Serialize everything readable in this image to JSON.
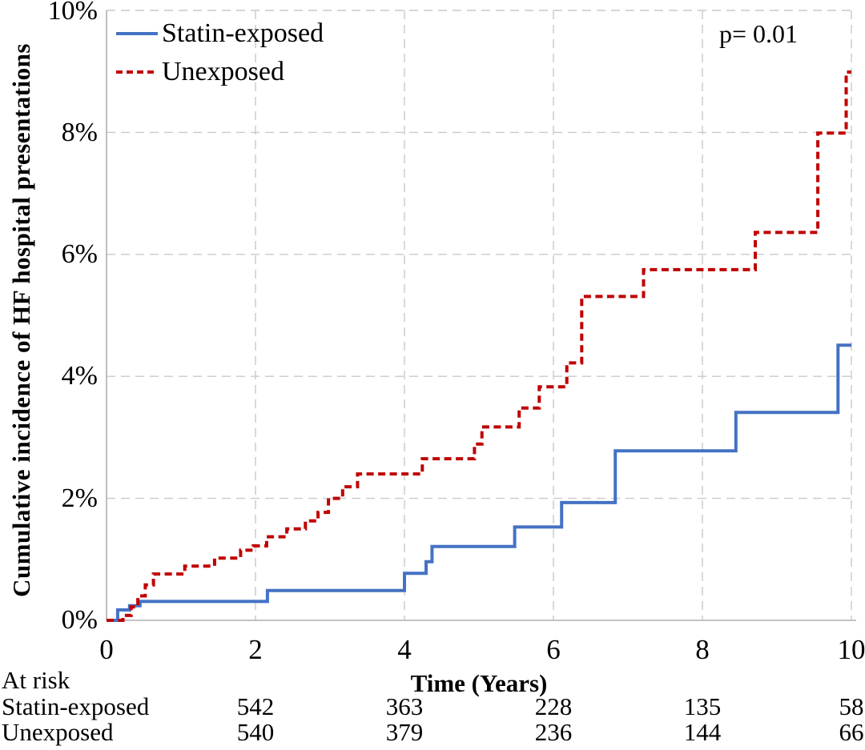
{
  "figure": {
    "p_value_label": "p= 0.01",
    "x_axis_title": "Time (Years)",
    "y_axis_title": "Cumulative incidence of HF hospital presentations"
  },
  "colors": {
    "statin_blue": "#4472C4",
    "unexposed_red": "#C00000",
    "gridline": "#C9C9C9",
    "axis": "#AFAFAF",
    "text": "#000000"
  },
  "chart_data": {
    "type": "line",
    "subtype": "step-after",
    "title": "",
    "xlabel": "Time (Years)",
    "ylabel": "Cumulative incidence of HF hospital presentations",
    "xlim": [
      0,
      10
    ],
    "ylim_percent": [
      0,
      10
    ],
    "x_ticks": [
      0,
      2,
      4,
      6,
      8,
      10
    ],
    "x_tick_labels": [
      "0",
      "2",
      "4",
      "6",
      "8",
      "10"
    ],
    "y_ticks_percent": [
      0,
      2,
      4,
      6,
      8,
      10
    ],
    "y_tick_labels": [
      "0%",
      "2%",
      "4%",
      "6%",
      "8%",
      "10%"
    ],
    "grid": "dashed, both axes, every 2 units",
    "legend_position": "top-left",
    "annotation": "p= 0.01",
    "series": [
      {
        "name": "Statin-exposed",
        "color": "#4472C4",
        "style": "solid",
        "points_year_percent": [
          [
            0,
            0
          ],
          [
            0.15,
            0.17
          ],
          [
            0.31,
            0.24
          ],
          [
            0.45,
            0.31
          ],
          [
            2.16,
            0.49
          ],
          [
            4.0,
            0.77
          ],
          [
            4.29,
            0.96
          ],
          [
            4.37,
            1.21
          ],
          [
            5.48,
            1.53
          ],
          [
            6.11,
            1.93
          ],
          [
            6.83,
            2.78
          ],
          [
            8.45,
            3.41
          ],
          [
            9.82,
            4.51
          ],
          [
            10,
            4.51
          ]
        ]
      },
      {
        "name": "Unexposed",
        "color": "#C00000",
        "style": "dashed",
        "points_year_percent": [
          [
            0,
            0
          ],
          [
            0.22,
            0.08
          ],
          [
            0.33,
            0.22
          ],
          [
            0.42,
            0.4
          ],
          [
            0.52,
            0.58
          ],
          [
            0.63,
            0.76
          ],
          [
            1.05,
            0.89
          ],
          [
            1.45,
            1.02
          ],
          [
            1.8,
            1.15
          ],
          [
            1.97,
            1.22
          ],
          [
            2.15,
            1.37
          ],
          [
            2.42,
            1.5
          ],
          [
            2.67,
            1.63
          ],
          [
            2.84,
            1.77
          ],
          [
            2.98,
            2.0
          ],
          [
            3.17,
            2.19
          ],
          [
            3.37,
            2.4
          ],
          [
            4.24,
            2.65
          ],
          [
            4.94,
            2.89
          ],
          [
            5.04,
            3.17
          ],
          [
            5.54,
            3.48
          ],
          [
            5.81,
            3.83
          ],
          [
            6.18,
            4.22
          ],
          [
            6.38,
            5.31
          ],
          [
            7.21,
            5.75
          ],
          [
            8.71,
            6.36
          ],
          [
            9.55,
            7.99
          ],
          [
            9.93,
            8.99
          ],
          [
            10,
            8.99
          ]
        ]
      }
    ],
    "at_risk": {
      "label": "At risk",
      "times": [
        2,
        4,
        6,
        8,
        10
      ],
      "rows": [
        {
          "name": "Statin-exposed",
          "counts": [
            "542",
            "363",
            "228",
            "135",
            "58"
          ]
        },
        {
          "name": "Unexposed",
          "counts": [
            "540",
            "379",
            "236",
            "144",
            "66"
          ]
        }
      ]
    }
  }
}
